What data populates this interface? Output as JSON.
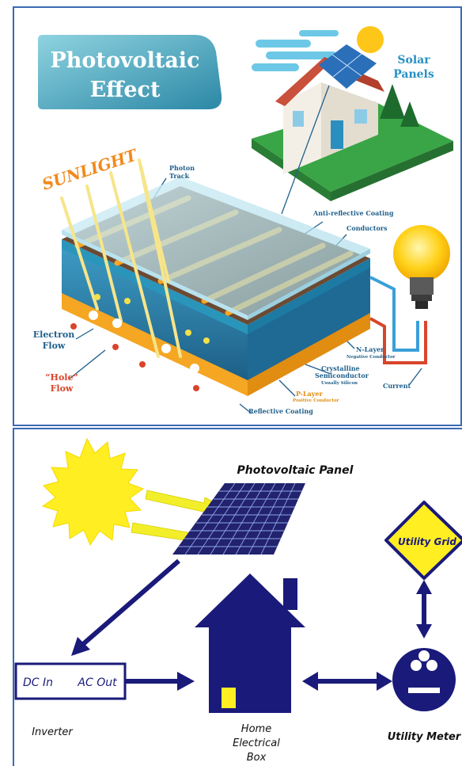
{
  "top_diagram": {
    "title_line1": "Photovoltaic",
    "title_line2": "Effect",
    "solar_panels_line1": "Solar",
    "solar_panels_line2": "Panels",
    "sunlight": "SUNLIGHT",
    "photon_track_line1": "Photon",
    "photon_track_line2": "Track",
    "anti_reflective": "Anti-reflective Coating",
    "conductors": "Conductors",
    "electron_flow_line1": "Electron",
    "electron_flow_line2": "Flow",
    "hole_flow_line1": "“Hole”",
    "hole_flow_line2": "Flow",
    "n_layer": "N-Layer",
    "n_layer_sub": "Negative Conductor",
    "crystalline_line1": "Crystalline",
    "crystalline_line2": "Semiconductor",
    "crystalline_sub": "Usually Silicon",
    "p_layer": "P-Layer",
    "p_layer_sub": "Positive Conductor",
    "current": "Current",
    "reflective_coating": "Reflective Coating",
    "colors": {
      "title_bg": "#2f8fa8",
      "title_text": "#ffffff",
      "label_blue": "#1f5f8b",
      "hole_red": "#d9452b",
      "sunlight_orange": "#f08a1c",
      "conductor": "#f5a623",
      "soil": "#6b4a34",
      "silicon": "#2c7fa8",
      "grass": "#3aa546"
    }
  },
  "bottom_diagram": {
    "pv_panel_label": "Photovoltaic Panel",
    "utility_grid_label": "Utility Grid",
    "inverter_dc_in": "DC In",
    "inverter_ac_out": "AC Out",
    "inverter_label": "Inverter",
    "home_line1": "Home",
    "home_line2": "Electrical",
    "home_line3": "Box",
    "utility_meter_label": "Utility Meter",
    "colors": {
      "navy": "#1a1a7a",
      "sun_yellow": "#ffee22",
      "grid_yellow": "#ffee22",
      "arrow_yellow": "#f3ee2a",
      "home_window": "#ffee22"
    }
  }
}
